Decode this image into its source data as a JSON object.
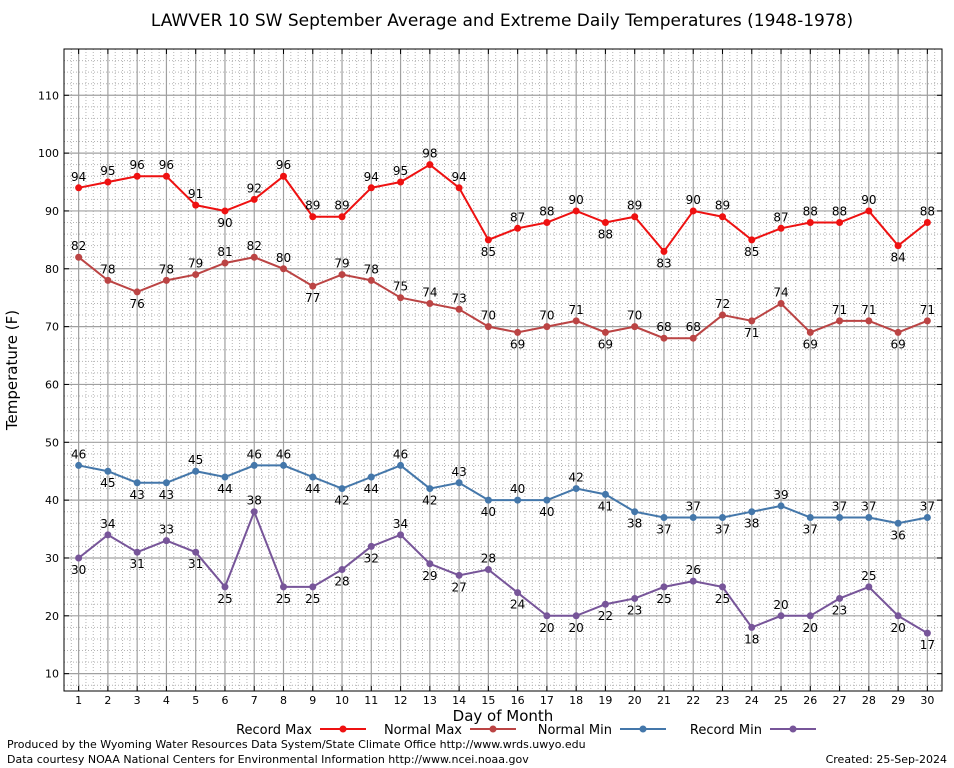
{
  "chart_data": {
    "type": "line",
    "title": "LAWVER 10 SW September Average and Extreme Daily Temperatures (1948-1978)",
    "xlabel": "Day of Month",
    "ylabel": "Temperature (F)",
    "x": [
      1,
      2,
      3,
      4,
      5,
      6,
      7,
      8,
      9,
      10,
      11,
      12,
      13,
      14,
      15,
      16,
      17,
      18,
      19,
      20,
      21,
      22,
      23,
      24,
      25,
      26,
      27,
      28,
      29,
      30
    ],
    "xlim": [
      0.5,
      30.5
    ],
    "ylim": [
      7,
      118
    ],
    "yticks": [
      10,
      20,
      30,
      40,
      50,
      60,
      70,
      80,
      90,
      100,
      110
    ],
    "grid": true,
    "legend_position": "bottom",
    "series": [
      {
        "name": "Record Max",
        "color": "#ee1111",
        "values": [
          94,
          95,
          96,
          96,
          91,
          90,
          92,
          96,
          89,
          89,
          94,
          95,
          98,
          94,
          85,
          87,
          88,
          90,
          88,
          89,
          83,
          90,
          89,
          85,
          87,
          88,
          88,
          90,
          84,
          88
        ]
      },
      {
        "name": "Normal Max",
        "color": "#bb4444",
        "values": [
          82,
          78,
          76,
          78,
          79,
          81,
          82,
          80,
          77,
          79,
          78,
          75,
          74,
          73,
          70,
          69,
          70,
          71,
          69,
          70,
          68,
          68,
          72,
          71,
          74,
          69,
          71,
          71,
          69,
          71
        ]
      },
      {
        "name": "Normal Min",
        "color": "#4477aa",
        "values": [
          46,
          45,
          43,
          43,
          45,
          44,
          46,
          46,
          44,
          42,
          44,
          46,
          42,
          43,
          40,
          40,
          40,
          42,
          41,
          38,
          37,
          37,
          37,
          38,
          39,
          37,
          37,
          37,
          36,
          37
        ]
      },
      {
        "name": "Record Min",
        "color": "#775599",
        "values": [
          30,
          34,
          31,
          33,
          31,
          25,
          38,
          25,
          25,
          28,
          32,
          34,
          29,
          27,
          28,
          24,
          20,
          20,
          22,
          23,
          25,
          26,
          25,
          18,
          20,
          20,
          23,
          25,
          20,
          17
        ]
      }
    ]
  },
  "credits": {
    "produced_by": "Produced by the Wyoming Water Resources Data System/State Climate Office http://www.wrds.uwyo.edu",
    "data_courtesy": "Data courtesy NOAA National Centers for Environmental Information http://www.ncei.noaa.gov",
    "created": "Created:  25-Sep-2024"
  }
}
